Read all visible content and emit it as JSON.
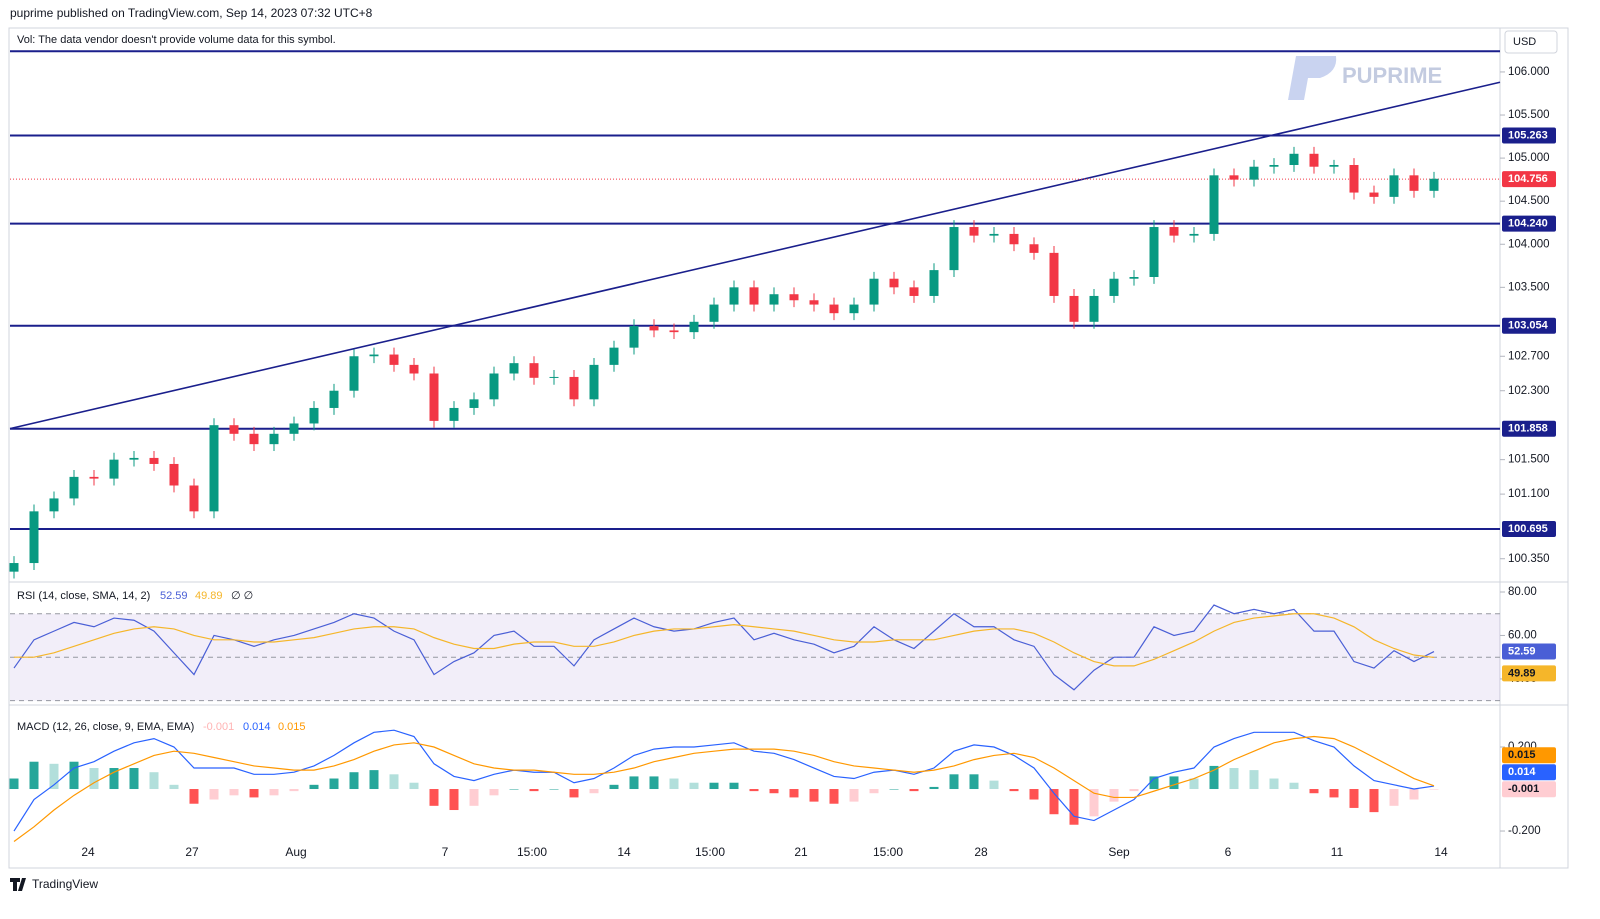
{
  "header": {
    "published": "puprime published on TradingView.com, Sep 14, 2023 07:32 UTC+8",
    "volume_note": "Vol: The data vendor doesn't provide volume data for this symbol.",
    "currency": "USD",
    "watermark": "PUPRIME",
    "brand": "TradingView"
  },
  "chart_data": [
    {
      "type": "candlestick",
      "up_color": "#089981",
      "down_color": "#f23645",
      "open": [
        100.2,
        100.3,
        100.9,
        101.05,
        101.3,
        101.28,
        101.5,
        101.52,
        101.45,
        101.2,
        100.9,
        101.9,
        101.8,
        101.68,
        101.8,
        101.92,
        102.1,
        102.3,
        102.7,
        102.72,
        102.6,
        102.5,
        101.95,
        102.1,
        102.2,
        102.5,
        102.62,
        102.45,
        102.46,
        102.2,
        102.6,
        102.8,
        103.05,
        103.0,
        102.98,
        103.1,
        103.3,
        103.5,
        103.3,
        103.42,
        103.35,
        103.3,
        103.2,
        103.3,
        103.6,
        103.5,
        103.4,
        103.7,
        104.2,
        104.1,
        104.12,
        104.0,
        103.9,
        103.4,
        103.1,
        103.4,
        103.6,
        103.62,
        104.2,
        104.1,
        104.12,
        104.8,
        104.75,
        104.9,
        104.92,
        105.05,
        104.9,
        104.92,
        104.6,
        104.55,
        104.8,
        104.62
      ],
      "high": [
        100.38,
        100.98,
        101.13,
        101.38,
        101.38,
        101.58,
        101.6,
        101.6,
        101.53,
        101.28,
        101.98,
        101.98,
        101.88,
        101.88,
        102.0,
        102.18,
        102.38,
        102.78,
        102.8,
        102.8,
        102.68,
        102.58,
        102.18,
        102.28,
        102.58,
        102.7,
        102.7,
        102.54,
        102.54,
        102.68,
        102.88,
        103.13,
        103.13,
        103.08,
        103.18,
        103.38,
        103.58,
        103.58,
        103.5,
        103.5,
        103.43,
        103.38,
        103.38,
        103.68,
        103.68,
        103.58,
        103.78,
        104.28,
        104.28,
        104.2,
        104.2,
        104.08,
        103.98,
        103.48,
        103.48,
        103.68,
        103.7,
        104.28,
        104.28,
        104.2,
        104.88,
        104.88,
        104.98,
        105.0,
        105.13,
        105.13,
        104.98,
        105.0,
        104.68,
        104.88,
        104.88,
        104.84
      ],
      "low": [
        100.12,
        100.22,
        100.82,
        100.97,
        101.2,
        101.2,
        101.42,
        101.37,
        101.12,
        100.82,
        100.82,
        101.72,
        101.6,
        101.6,
        101.72,
        101.84,
        102.02,
        102.22,
        102.62,
        102.52,
        102.42,
        101.87,
        101.87,
        102.02,
        102.12,
        102.42,
        102.37,
        102.37,
        102.12,
        102.12,
        102.52,
        102.72,
        102.92,
        102.9,
        102.9,
        103.02,
        103.22,
        103.22,
        103.22,
        103.27,
        103.22,
        103.12,
        103.12,
        103.22,
        103.42,
        103.32,
        103.32,
        103.62,
        104.02,
        104.02,
        103.92,
        103.82,
        103.32,
        103.02,
        103.02,
        103.32,
        103.52,
        103.54,
        104.02,
        104.02,
        104.04,
        104.67,
        104.67,
        104.82,
        104.84,
        104.82,
        104.82,
        104.52,
        104.47,
        104.47,
        104.54,
        104.54
      ],
      "close": [
        100.3,
        100.9,
        101.05,
        101.3,
        101.28,
        101.5,
        101.52,
        101.45,
        101.2,
        100.9,
        101.9,
        101.8,
        101.68,
        101.8,
        101.92,
        102.1,
        102.3,
        102.7,
        102.72,
        102.6,
        102.5,
        101.95,
        102.1,
        102.2,
        102.5,
        102.62,
        102.45,
        102.46,
        102.2,
        102.6,
        102.8,
        103.05,
        103.0,
        102.98,
        103.1,
        103.3,
        103.5,
        103.3,
        103.42,
        103.35,
        103.3,
        103.2,
        103.3,
        103.6,
        103.5,
        103.4,
        103.7,
        104.2,
        104.1,
        104.12,
        104.0,
        103.9,
        103.4,
        103.1,
        103.4,
        103.6,
        103.62,
        104.2,
        104.1,
        104.12,
        104.8,
        104.75,
        104.9,
        104.92,
        105.05,
        104.9,
        104.92,
        104.6,
        104.55,
        104.8,
        104.62,
        104.76
      ],
      "ylim": [
        100.08,
        106.51
      ],
      "yticks": [
        {
          "value": 106,
          "label": "106.000"
        },
        {
          "value": 105.5,
          "label": "105.500"
        },
        {
          "value": 105,
          "label": "105.000"
        },
        {
          "value": 104.5,
          "label": "104.500"
        },
        {
          "value": 104,
          "label": "104.000"
        },
        {
          "value": 103.5,
          "label": "103.500"
        },
        {
          "value": 102.7,
          "label": "102.700"
        },
        {
          "value": 102.3,
          "label": "102.300"
        },
        {
          "value": 101.5,
          "label": "101.500"
        },
        {
          "value": 101.1,
          "label": "101.100"
        },
        {
          "value": 100.35,
          "label": "100.350"
        }
      ],
      "xlim": [
        -0.2,
        74.3
      ],
      "xticks": [
        {
          "value": 3.7,
          "label": "24"
        },
        {
          "value": 8.9,
          "label": "27"
        },
        {
          "value": 14.1,
          "label": "Aug"
        },
        {
          "value": 21.55,
          "label": "7"
        },
        {
          "value": 25.9,
          "label": "15:00"
        },
        {
          "value": 30.5,
          "label": "14"
        },
        {
          "value": 34.8,
          "label": "15:00"
        },
        {
          "value": 39.35,
          "label": "21"
        },
        {
          "value": 43.7,
          "label": "15:00"
        },
        {
          "value": 48.35,
          "label": "28"
        },
        {
          "value": 55.25,
          "label": "Sep"
        },
        {
          "value": 60.7,
          "label": "6"
        },
        {
          "value": 66.15,
          "label": "11"
        },
        {
          "value": 71.35,
          "label": "14"
        }
      ],
      "levels": [
        {
          "value": 106.24
        },
        {
          "value": 105.263,
          "label": "105.263"
        },
        {
          "value": 104.24,
          "label": "104.240"
        },
        {
          "value": 103.054,
          "label": "103.054"
        },
        {
          "value": 101.858,
          "label": "101.858"
        },
        {
          "value": 100.695,
          "label": "100.695"
        }
      ],
      "level_color": "#1a1f8c",
      "trendline": {
        "start": 101.86,
        "end": 105.88
      },
      "last_price": 104.756
    },
    {
      "type": "rsi",
      "title": "RSI (14, close, SMA, 14, 2)",
      "extra": "∅  ∅",
      "series": [
        {
          "color": "#4a5fd6",
          "values": [
            45,
            58,
            62,
            66,
            64,
            68,
            67,
            62,
            52,
            42,
            60,
            58,
            55,
            58,
            60,
            63,
            66,
            70,
            68,
            62,
            58,
            42,
            48,
            52,
            60,
            62,
            55,
            55,
            46,
            58,
            63,
            68,
            64,
            62,
            63,
            66,
            68,
            58,
            61,
            58,
            56,
            52,
            55,
            64,
            58,
            54,
            62,
            70,
            64,
            64,
            58,
            55,
            42,
            35,
            44,
            50,
            50,
            64,
            60,
            62,
            74,
            70,
            72,
            70,
            72,
            62,
            62,
            48,
            45,
            53,
            48,
            52.59
          ]
        },
        {
          "color": "#f5b62a",
          "values": [
            50,
            50,
            52,
            55,
            58,
            61,
            63,
            64,
            63,
            60,
            58,
            58,
            57,
            57,
            58,
            59,
            61,
            63,
            64,
            64,
            63,
            59,
            56,
            54,
            54,
            56,
            57,
            57,
            55,
            55,
            57,
            60,
            62,
            63,
            63,
            64,
            65,
            64,
            63,
            62,
            60,
            58,
            57,
            57,
            58,
            58,
            58,
            60,
            62,
            63,
            63,
            61,
            57,
            52,
            48,
            46,
            46,
            49,
            53,
            57,
            62,
            66,
            68,
            69,
            70,
            70,
            68,
            64,
            58,
            54,
            51,
            49.89
          ]
        }
      ],
      "band": [
        30,
        70
      ],
      "midline": 50,
      "ylim": [
        28,
        84.6
      ],
      "yticks": [
        {
          "value": 80,
          "label": "80.00"
        },
        {
          "value": 60,
          "label": "60.00"
        },
        {
          "value": 40,
          "label": "40.00"
        }
      ]
    },
    {
      "type": "macd",
      "title": "MACD (12, 26, close, 9, EMA, EMA)",
      "histogram": [
        0.05,
        0.13,
        0.12,
        0.13,
        0.1,
        0.1,
        0.1,
        0.08,
        0.02,
        -0.07,
        -0.05,
        -0.03,
        -0.04,
        -0.03,
        -0.01,
        0.02,
        0.05,
        0.08,
        0.09,
        0.07,
        0.03,
        -0.08,
        -0.1,
        -0.08,
        -0.03,
        0.0,
        -0.01,
        0.0,
        -0.04,
        -0.02,
        0.02,
        0.06,
        0.06,
        0.05,
        0.03,
        0.03,
        0.03,
        -0.01,
        -0.02,
        -0.04,
        -0.06,
        -0.07,
        -0.06,
        -0.02,
        0.0,
        -0.01,
        0.01,
        0.07,
        0.07,
        0.04,
        -0.01,
        -0.05,
        -0.12,
        -0.17,
        -0.13,
        -0.06,
        -0.01,
        0.06,
        0.06,
        0.05,
        0.11,
        0.1,
        0.09,
        0.05,
        0.03,
        -0.02,
        -0.04,
        -0.09,
        -0.11,
        -0.08,
        -0.05,
        -0.001
      ],
      "histogram_colors": [
        "#26a69a",
        "#b2dfdb",
        "#ff5252",
        "#ffcdd2"
      ],
      "series": [
        {
          "color": "#2962ff",
          "values": [
            -0.2,
            -0.05,
            0.02,
            0.1,
            0.13,
            0.18,
            0.22,
            0.24,
            0.2,
            0.1,
            0.1,
            0.1,
            0.07,
            0.07,
            0.08,
            0.11,
            0.16,
            0.22,
            0.27,
            0.28,
            0.25,
            0.12,
            0.06,
            0.04,
            0.07,
            0.09,
            0.08,
            0.08,
            0.03,
            0.05,
            0.1,
            0.16,
            0.19,
            0.2,
            0.2,
            0.21,
            0.22,
            0.18,
            0.17,
            0.14,
            0.1,
            0.06,
            0.05,
            0.08,
            0.09,
            0.07,
            0.1,
            0.18,
            0.21,
            0.2,
            0.16,
            0.1,
            -0.02,
            -0.13,
            -0.15,
            -0.1,
            -0.05,
            0.05,
            0.08,
            0.1,
            0.2,
            0.24,
            0.27,
            0.27,
            0.27,
            0.23,
            0.2,
            0.11,
            0.04,
            0.02,
            0.0,
            0.014
          ]
        },
        {
          "color": "#ff9800",
          "values": [
            -0.25,
            -0.18,
            -0.1,
            -0.03,
            0.03,
            0.08,
            0.12,
            0.16,
            0.18,
            0.17,
            0.15,
            0.13,
            0.11,
            0.1,
            0.09,
            0.09,
            0.11,
            0.14,
            0.18,
            0.21,
            0.22,
            0.2,
            0.16,
            0.12,
            0.1,
            0.09,
            0.09,
            0.08,
            0.07,
            0.07,
            0.08,
            0.1,
            0.13,
            0.15,
            0.17,
            0.18,
            0.19,
            0.19,
            0.19,
            0.18,
            0.16,
            0.13,
            0.11,
            0.1,
            0.09,
            0.08,
            0.09,
            0.11,
            0.14,
            0.16,
            0.17,
            0.15,
            0.1,
            0.04,
            -0.02,
            -0.04,
            -0.04,
            -0.01,
            0.02,
            0.05,
            0.09,
            0.14,
            0.18,
            0.22,
            0.24,
            0.25,
            0.24,
            0.2,
            0.15,
            0.1,
            0.05,
            0.015
          ]
        }
      ],
      "ylim": [
        -0.376,
        0.4
      ],
      "yticks": [
        {
          "value": 0.2,
          "label": "0.200"
        },
        {
          "value": -0.2,
          "label": "-0.200"
        }
      ]
    }
  ]
}
